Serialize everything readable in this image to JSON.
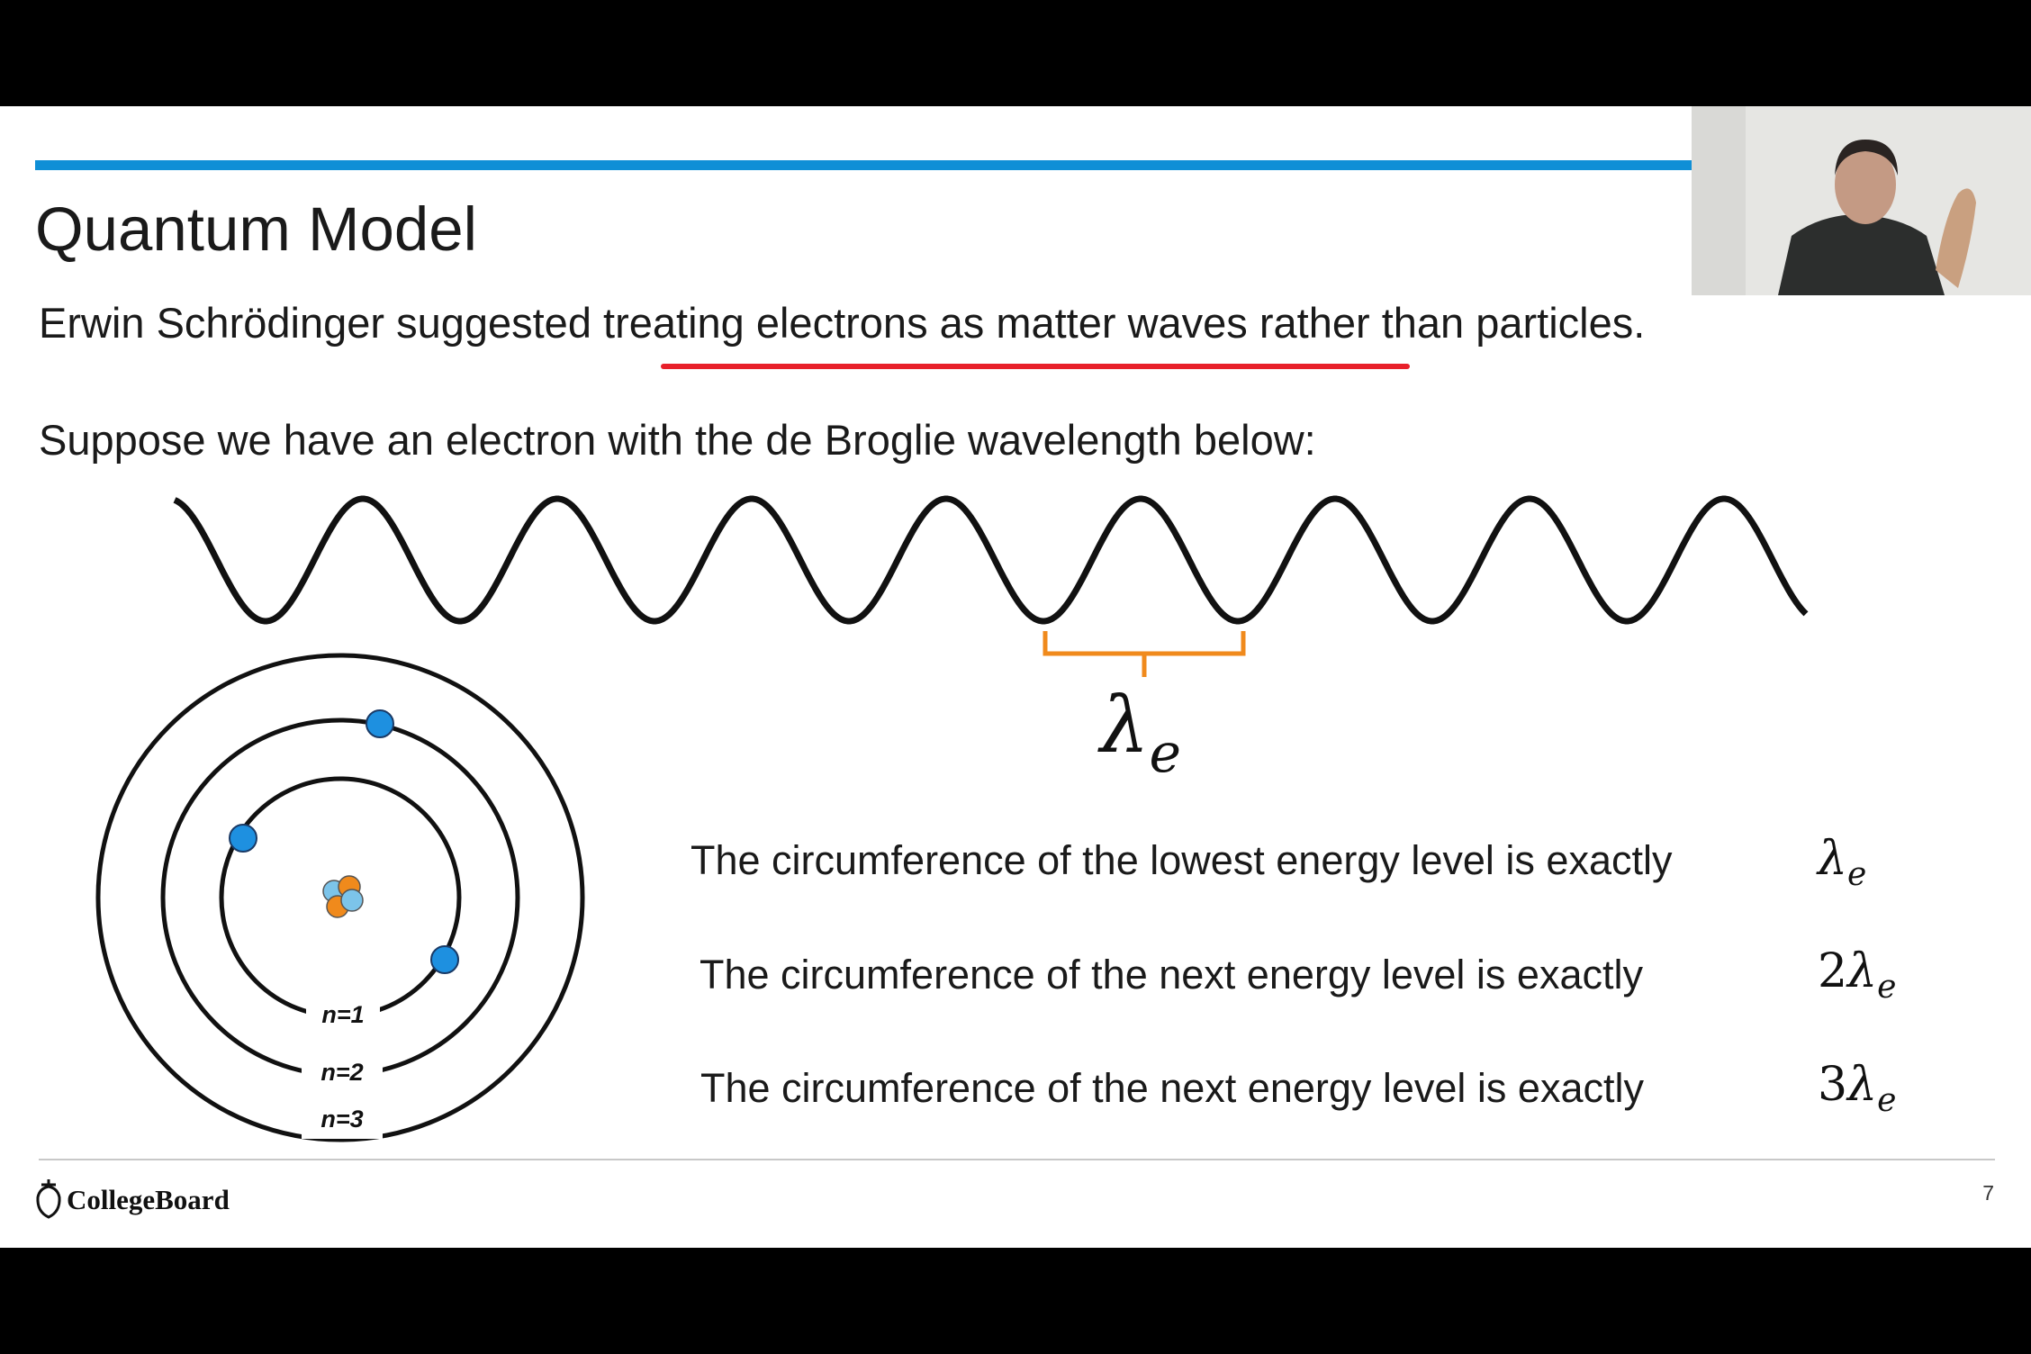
{
  "slide": {
    "title": "Quantum Model",
    "intro": {
      "before": "Erwin Schrödinger suggested ",
      "underlined": "treating electrons as matter waves",
      "after": " rather than particles."
    },
    "prompt": "Suppose we have an electron with the de Broglie wavelength below:",
    "wavelength_label": {
      "symbol": "λ",
      "subscript": "e"
    },
    "orbit_labels": [
      "n=1",
      "n=2",
      "n=3"
    ],
    "statements": [
      {
        "text": "The circumference of the lowest energy level is exactly",
        "symbol": "λ",
        "subscript": "e"
      },
      {
        "text": "The circumference of the next energy level is exactly",
        "coefficient": "2",
        "symbol": "λ",
        "subscript": "e"
      },
      {
        "text": "The circumference of the next energy level is exactly",
        "coefficient": "3",
        "symbol": "λ",
        "subscript": "e"
      }
    ],
    "footer": {
      "logo": "CollegeBoard",
      "page_number": 7
    }
  }
}
